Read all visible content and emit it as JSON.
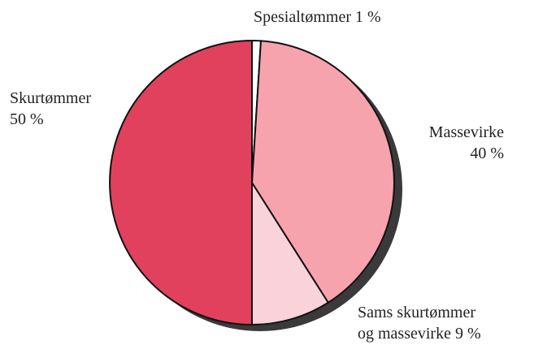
{
  "chart_data": {
    "type": "pie",
    "categories": [
      "Spesialtømmer",
      "Massevirke",
      "Sams skurtømmer og massevirke",
      "Skurtømmer"
    ],
    "values": [
      1,
      40,
      9,
      50
    ],
    "value_labels": [
      "1 %",
      "40 %",
      "9 %",
      "50 %"
    ],
    "colors": [
      "#ffffff",
      "#f7a3ad",
      "#f9d3d9",
      "#e1415c"
    ]
  }
}
